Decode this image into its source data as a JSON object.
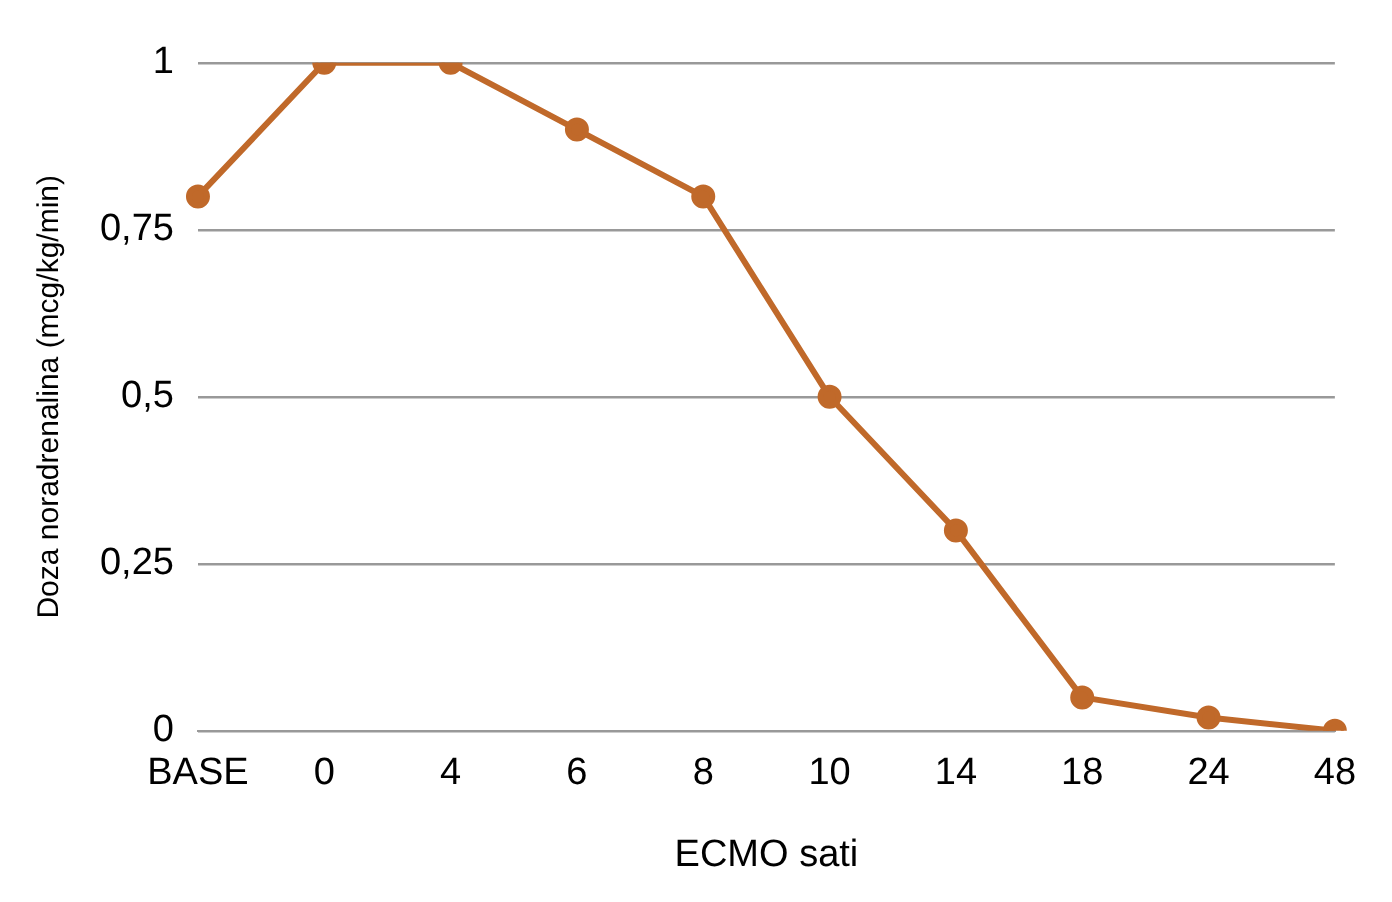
{
  "chart_data": {
    "type": "line",
    "xlabel": "ECMO sati",
    "ylabel": "Doza noradrenalina (mcg/kg/min)",
    "categories": [
      "BASE",
      "0",
      "4",
      "6",
      "8",
      "10",
      "14",
      "18",
      "24",
      "48"
    ],
    "series": [
      {
        "color": "#c0692a",
        "values": [
          0.8,
          1,
          1,
          0.9,
          0.8,
          0.5,
          0.3,
          0.05,
          0.02,
          0
        ]
      }
    ],
    "ylim": [
      0,
      1
    ],
    "yticks": [
      0,
      {
        "value": 0.25,
        "label": "0,25"
      },
      {
        "value": 0.5,
        "label": "0,5"
      },
      {
        "value": 0.75,
        "label": "0,75"
      },
      1
    ],
    "grid": "y",
    "legend": false,
    "marker": "circle",
    "line_style": "solid"
  }
}
